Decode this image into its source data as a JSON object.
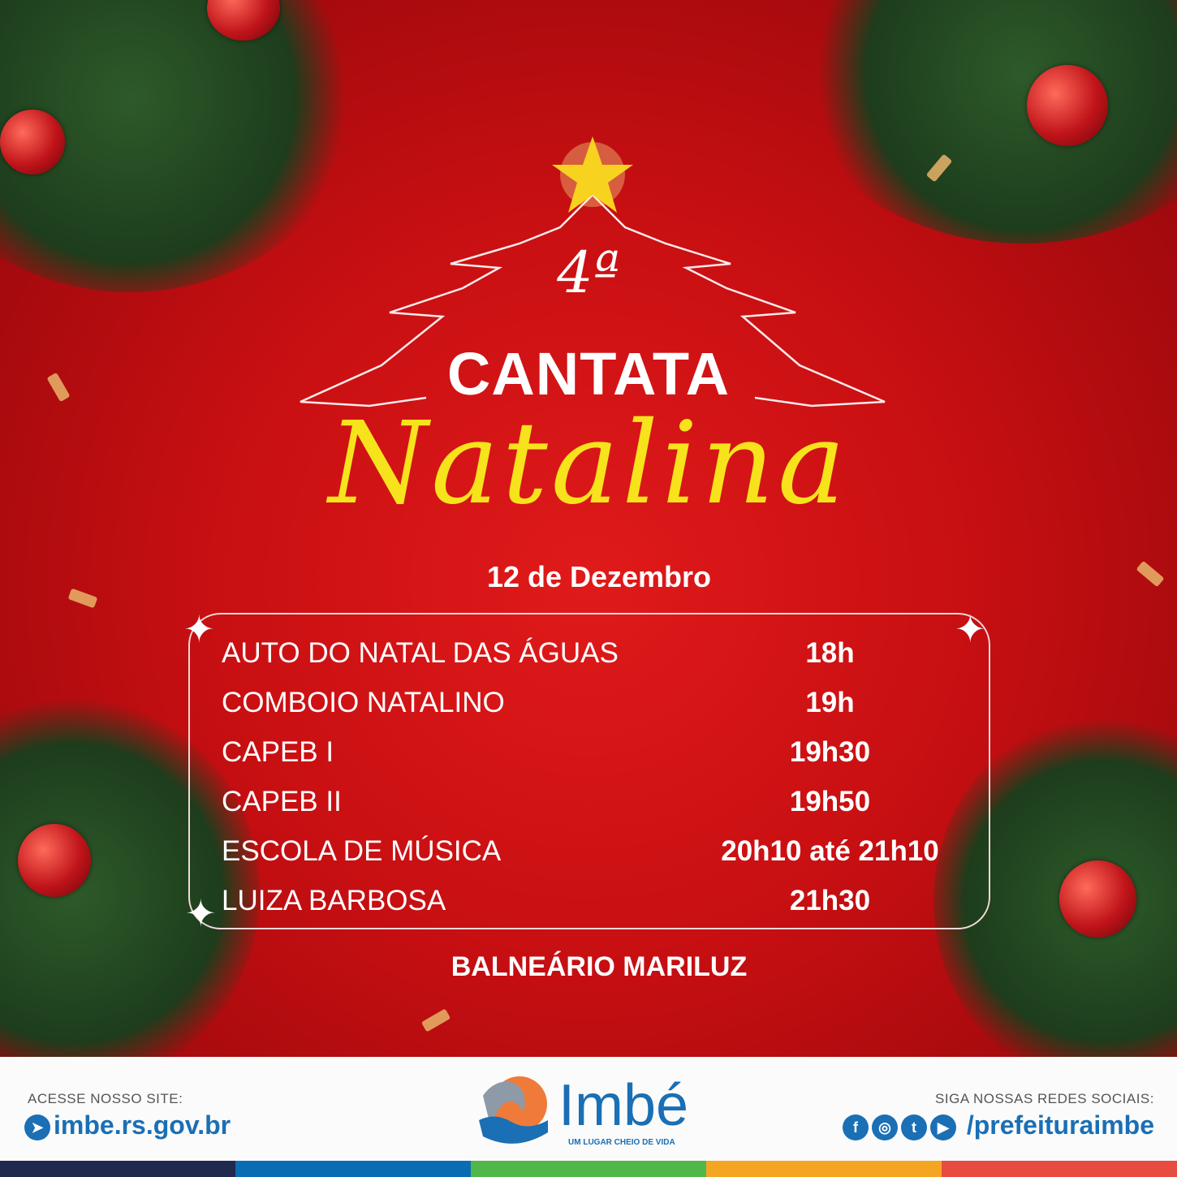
{
  "event": {
    "edition": "4ª",
    "title_line1": "CANTATA",
    "title_line2": "Natalina",
    "date": "12 de Dezembro",
    "schedule": [
      {
        "name": "AUTO DO NATAL DAS ÁGUAS",
        "time": "18h"
      },
      {
        "name": "COMBOIO NATALINO",
        "time": "19h"
      },
      {
        "name": "CAPEB I",
        "time": "19h30"
      },
      {
        "name": "CAPEB II",
        "time": "19h50"
      },
      {
        "name": "ESCOLA DE MÚSICA",
        "time": "20h10 até 21h10"
      },
      {
        "name": "LUIZA BARBOSA",
        "time": "21h30"
      }
    ],
    "location": "BALNEÁRIO MARILUZ"
  },
  "footer": {
    "site_label": "ACESSE NOSSO SITE:",
    "site_url": "imbe.rs.gov.br",
    "logo_name": "Imbé",
    "logo_tagline": "UM LUGAR CHEIO DE VIDA",
    "social_label": "SIGA NOSSAS REDES SOCIAIS:",
    "social_handle": "/prefeituraimbe",
    "social_icons": [
      "facebook-icon",
      "instagram-icon",
      "twitter-icon",
      "youtube-icon"
    ]
  },
  "colors": {
    "background": "#c80f12",
    "accent_yellow": "#f6e31c",
    "brand_blue": "#1a6fb5",
    "stripe": [
      "#1f2a4e",
      "#0a6db3",
      "#4fb848",
      "#f4a623",
      "#e84b3f"
    ]
  }
}
